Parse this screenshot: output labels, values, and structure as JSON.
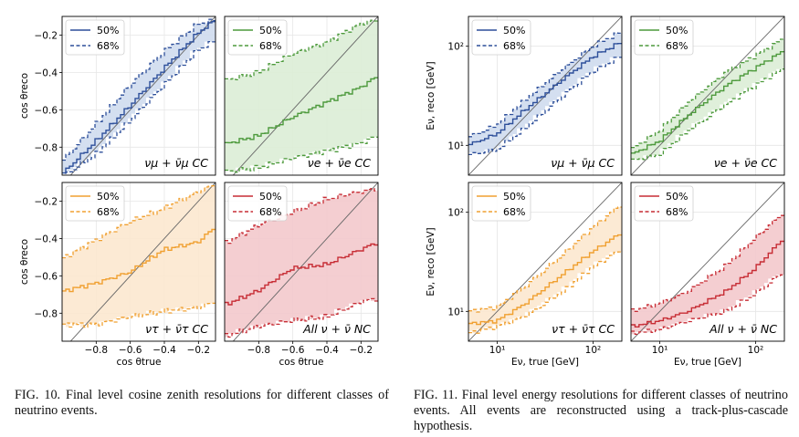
{
  "colors": {
    "numu": "#2d4f9a",
    "nue": "#4d9a3c",
    "nutau": "#f0a030",
    "nc": "#c72d35",
    "numu_fill": "#cfdbee",
    "nue_fill": "#dcedd6",
    "nutau_fill": "#fce8cf",
    "nc_fill": "#f3c9cc"
  },
  "legend": {
    "p50": "50%",
    "p68": "68%"
  },
  "panel_labels": {
    "numu": "νμ + ν̄μ CC",
    "nue": "νe + ν̄e CC",
    "nutau": "ντ + ν̄τ CC",
    "nc": "All ν + ν̄ NC"
  },
  "fig10": {
    "caption": "FIG. 10.  Final level cosine zenith resolutions for different classes of neutrino events.",
    "xlabel": "cos θtrue",
    "ylabel": "cos θreco",
    "xticks": [
      "−0.8",
      "−0.6",
      "−0.4",
      "−0.2"
    ],
    "yticks": [
      "−0.2",
      "−0.4",
      "−0.6",
      "−0.8"
    ]
  },
  "fig11": {
    "caption": "FIG. 11.  Final level energy resolutions for different classes of neutrino events.  All events are reconstructed using a track-plus-cascade hypothesis.",
    "xlabel": "Eν, true [GeV]",
    "ylabel": "Eν, reco [GeV]",
    "xticks": [
      "10¹",
      "10²"
    ],
    "yticks": [
      "10²",
      "10¹"
    ]
  },
  "chart_data": [
    {
      "type": "area",
      "figure": "FIG. 10",
      "xlabel": "cos θtrue",
      "ylabel": "cos θreco",
      "xlim": [
        -1.0,
        -0.1
      ],
      "ylim": [
        -0.95,
        -0.1
      ],
      "grid": true,
      "legend_placement": "top-left",
      "x": [
        -0.98,
        -0.8,
        -0.6,
        -0.4,
        -0.2,
        -0.1
      ],
      "panels": [
        {
          "id": "numu",
          "label": "νμ + ν̄μ CC",
          "median": [
            -0.93,
            -0.77,
            -0.58,
            -0.38,
            -0.19,
            -0.12
          ],
          "lower": [
            -0.95,
            -0.84,
            -0.66,
            -0.47,
            -0.28,
            -0.23
          ],
          "upper": [
            -0.86,
            -0.68,
            -0.47,
            -0.29,
            -0.14,
            -0.12
          ]
        },
        {
          "id": "nue",
          "label": "νe + ν̄e CC",
          "median": [
            -0.78,
            -0.74,
            -0.64,
            -0.56,
            -0.48,
            -0.42
          ],
          "lower": [
            -0.93,
            -0.91,
            -0.86,
            -0.82,
            -0.78,
            -0.74
          ],
          "upper": [
            -0.44,
            -0.4,
            -0.3,
            -0.24,
            -0.14,
            -0.12
          ]
        },
        {
          "id": "nutau",
          "label": "ντ + ν̄τ CC",
          "median": [
            -0.68,
            -0.64,
            -0.58,
            -0.46,
            -0.42,
            -0.34
          ],
          "lower": [
            -0.86,
            -0.86,
            -0.82,
            -0.79,
            -0.77,
            -0.74
          ],
          "upper": [
            -0.5,
            -0.41,
            -0.31,
            -0.24,
            -0.15,
            -0.11
          ]
        },
        {
          "id": "nc",
          "label": "All ν + ν̄ NC",
          "median": [
            -0.75,
            -0.68,
            -0.56,
            -0.54,
            -0.46,
            -0.42
          ],
          "lower": [
            -0.92,
            -0.87,
            -0.84,
            -0.82,
            -0.74,
            -0.72
          ],
          "upper": [
            -0.42,
            -0.33,
            -0.26,
            -0.19,
            -0.15,
            -0.13
          ]
        }
      ]
    },
    {
      "type": "area",
      "figure": "FIG. 11",
      "xlabel": "Eν, true [GeV]",
      "ylabel": "Eν, reco [GeV]",
      "xscale": "log",
      "yscale": "log",
      "xlim": [
        5,
        200
      ],
      "ylim": [
        5,
        200
      ],
      "grid": true,
      "legend_placement": "top-left",
      "x": [
        5,
        10,
        20,
        50,
        100,
        200
      ],
      "panels": [
        {
          "id": "numu",
          "label": "νμ + ν̄μ CC",
          "median": [
            10,
            13,
            23,
            47,
            78,
            110
          ],
          "lower": [
            8,
            9,
            15,
            32,
            55,
            80
          ],
          "upper": [
            12,
            16,
            29,
            60,
            100,
            140
          ]
        },
        {
          "id": "nue",
          "label": "νe + ν̄e CC",
          "median": [
            8,
            11,
            20,
            40,
            60,
            90
          ],
          "lower": [
            7,
            8,
            14,
            26,
            40,
            60
          ],
          "upper": [
            9,
            14,
            27,
            55,
            80,
            120
          ]
        },
        {
          "id": "nutau",
          "label": "ντ + ν̄τ CC",
          "median": [
            7.5,
            8,
            12,
            24,
            40,
            62
          ],
          "lower": [
            6,
            7,
            9,
            16,
            28,
            42
          ],
          "upper": [
            10,
            11,
            18,
            38,
            70,
            120
          ]
        },
        {
          "id": "nc",
          "label": "All ν + ν̄ NC",
          "median": [
            7,
            8,
            10,
            16,
            27,
            55
          ],
          "lower": [
            6,
            6.5,
            8,
            10,
            15,
            25
          ],
          "upper": [
            10,
            12,
            16,
            29,
            55,
            100
          ]
        }
      ]
    }
  ]
}
